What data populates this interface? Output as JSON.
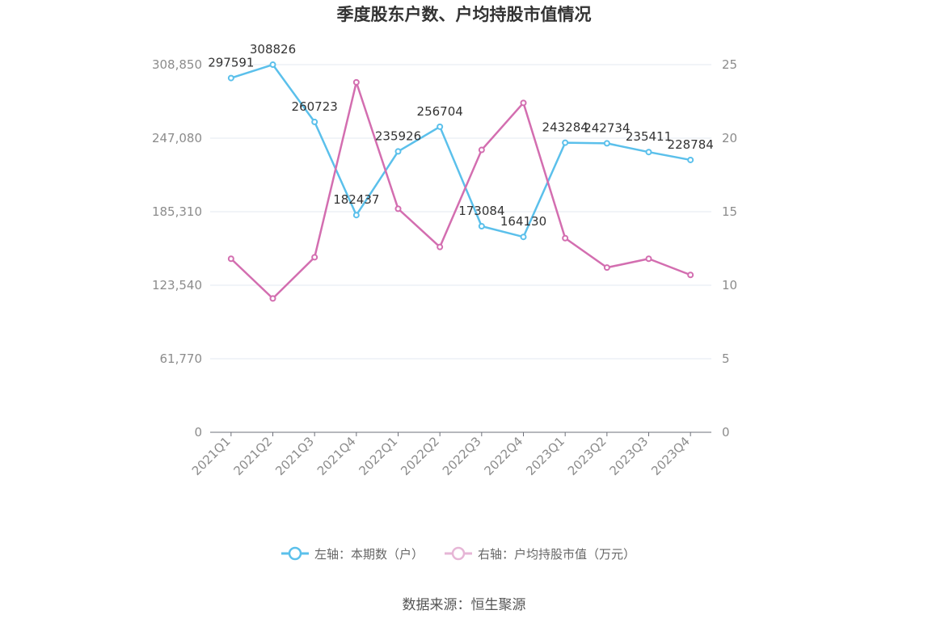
{
  "chart_data": {
    "type": "line",
    "title": "季度股东户数、户均持股市值情况",
    "categories": [
      "2021Q1",
      "2021Q2",
      "2021Q3",
      "2021Q4",
      "2022Q1",
      "2022Q2",
      "2022Q3",
      "2022Q4",
      "2023Q1",
      "2023Q2",
      "2023Q3",
      "2023Q4"
    ],
    "y_left": {
      "ylim": [
        0,
        308850
      ],
      "ticks": [
        "0",
        "61,770",
        "123,540",
        "185,310",
        "247,080",
        "308,850"
      ]
    },
    "y_right": {
      "ylim": [
        0,
        25
      ],
      "ticks": [
        "0",
        "5",
        "10",
        "15",
        "20",
        "25"
      ]
    },
    "series": [
      {
        "name": "左轴：本期数（户）",
        "axis": "left",
        "color": "#5bc0eb",
        "values": [
          297591,
          308826,
          260723,
          182437,
          235926,
          256704,
          173084,
          164130,
          243284,
          242734,
          235411,
          228784
        ],
        "labels": [
          "297591",
          "308826",
          "260723",
          "182437",
          "235926",
          "256704",
          "173084",
          "164130",
          "243284",
          "242734",
          "235411",
          "228784"
        ]
      },
      {
        "name": "右轴：户均持股市值（万元）",
        "axis": "right",
        "color": "#d36eb0",
        "values": [
          11.8,
          9.1,
          11.9,
          23.8,
          15.2,
          12.6,
          19.2,
          22.4,
          13.2,
          11.2,
          11.8,
          10.7
        ]
      }
    ],
    "legend_position": "bottom",
    "grid": true
  },
  "source": "数据来源：恒生聚源"
}
